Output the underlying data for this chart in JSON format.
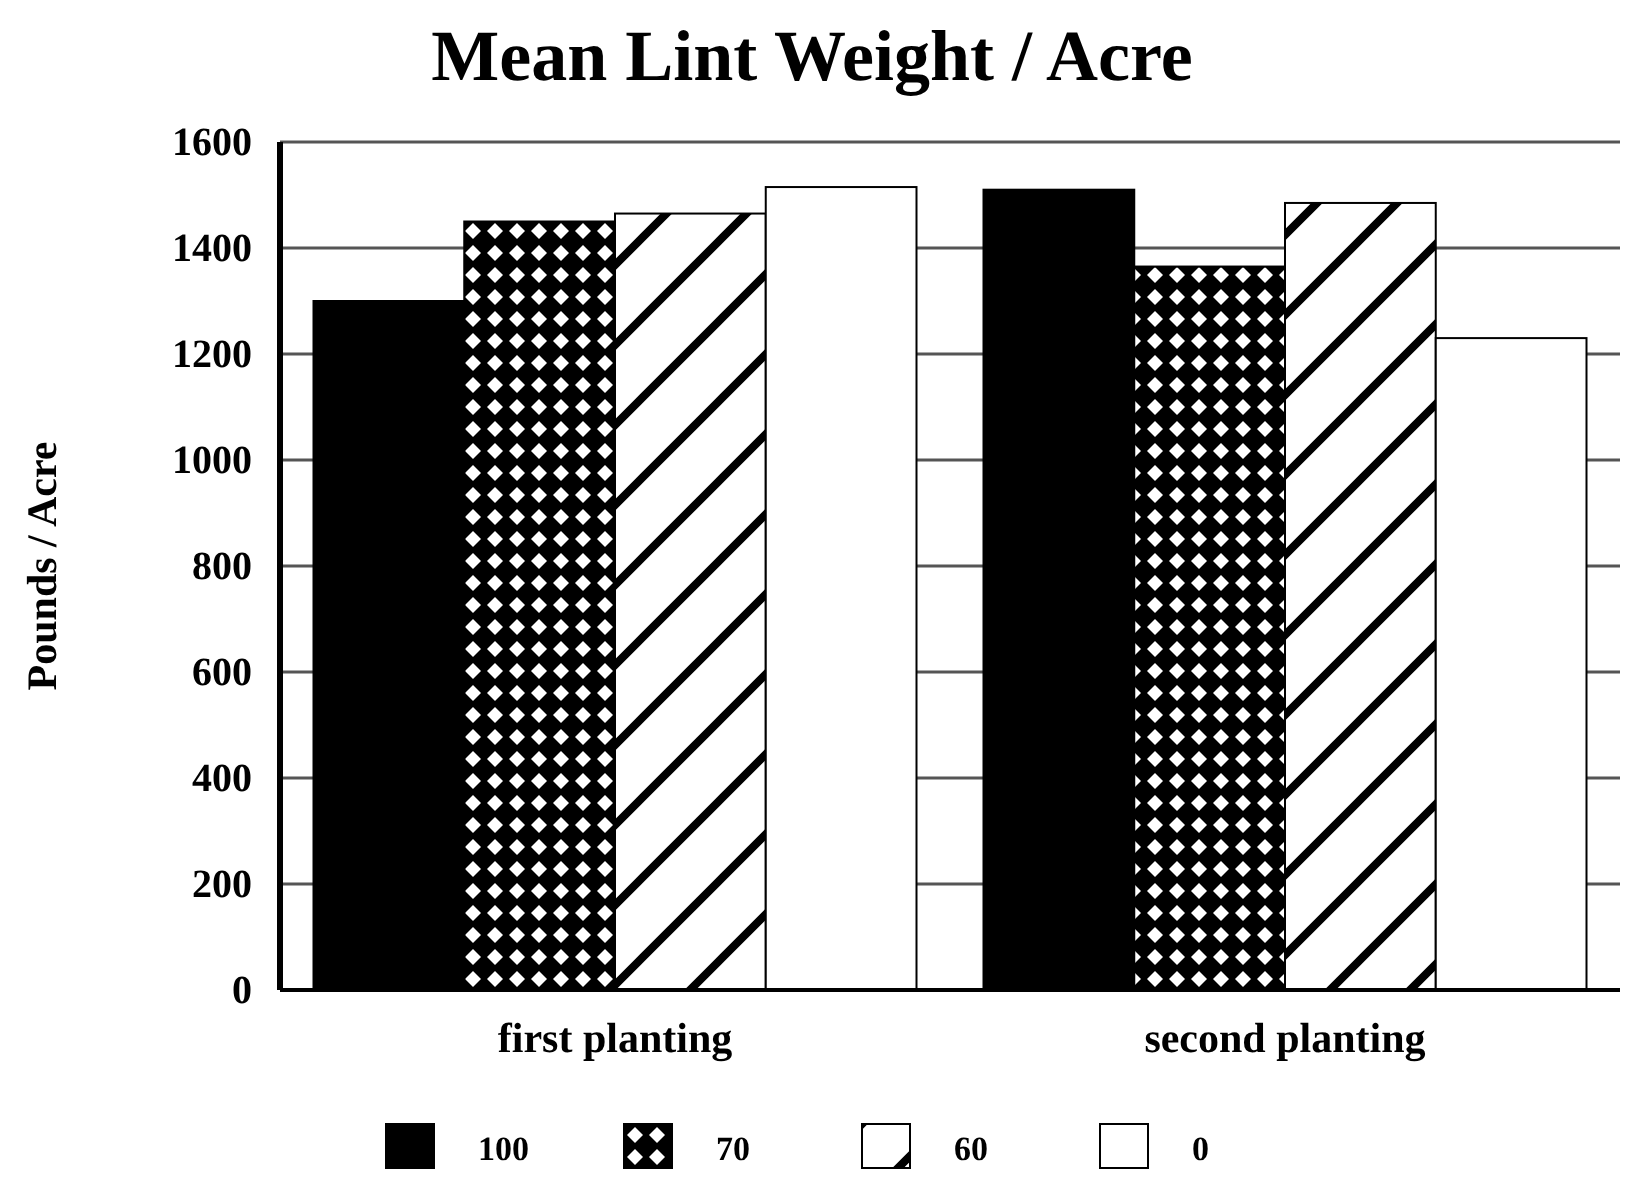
{
  "chart_data": {
    "type": "bar",
    "title": "Mean Lint Weight / Acre",
    "ylabel": "Pounds / Acre",
    "categories": [
      "first planting",
      "second planting"
    ],
    "series": [
      {
        "name": "100",
        "color": "#000000",
        "values": [
          1300,
          1510
        ]
      },
      {
        "name": "70",
        "color": "#000000",
        "values": [
          1450,
          1365
        ]
      },
      {
        "name": "60",
        "color": "#000000",
        "values": [
          1465,
          1485
        ]
      },
      {
        "name": "0",
        "color": "#ffffff",
        "values": [
          1515,
          1230
        ]
      }
    ],
    "ylim": [
      0,
      1600
    ],
    "yticks": [
      0,
      200,
      400,
      600,
      800,
      1000,
      1200,
      1400,
      1600
    ],
    "grid": "y",
    "legend": "bottom"
  }
}
